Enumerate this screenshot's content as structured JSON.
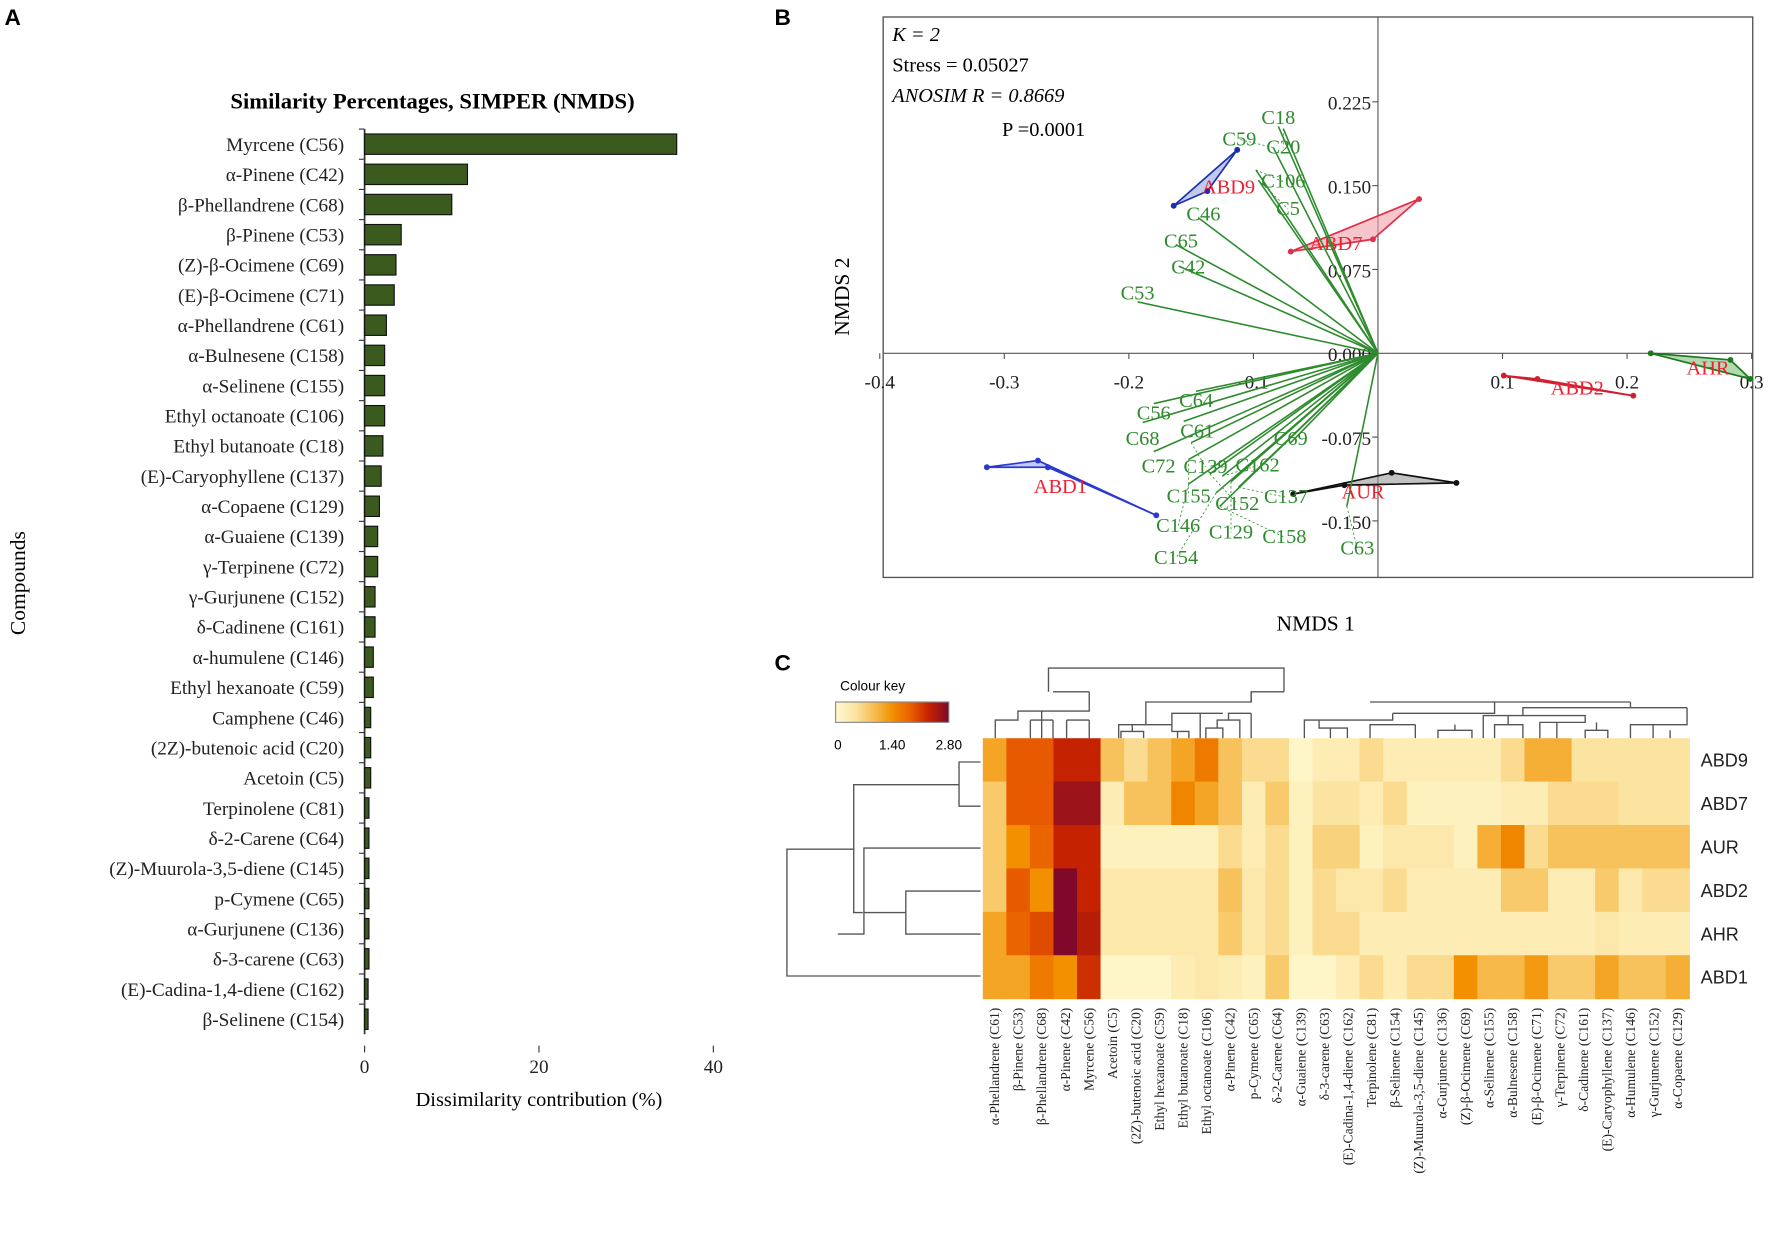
{
  "panel_letters": {
    "a": "A",
    "b": "B",
    "c": "C"
  },
  "chart_data": [
    {
      "type": "bar",
      "orientation": "horizontal",
      "title": "Similarity Percentages, SIMPER (NMDS)",
      "xlabel": "Dissimilarity contribution (%)",
      "ylabel": "Compounds",
      "xlim": [
        0,
        40
      ],
      "xticks": [
        "0",
        "20",
        "40"
      ],
      "bar_color": "#3a5a1e",
      "categories": [
        "Myrcene (C56)",
        "α-Pinene (C42)",
        "β-Phellandrene (C68)",
        "β-Pinene (C53)",
        "(Z)-β-Ocimene (C69)",
        "(E)-β-Ocimene (C71)",
        "α-Phellandrene (C61)",
        "α-Bulnesene (C158)",
        "α-Selinene (C155)",
        "Ethyl octanoate (C106)",
        "Ethyl butanoate (C18)",
        "(E)-Caryophyllene (C137)",
        "α-Copaene (C129)",
        "α-Guaiene (C139)",
        "γ-Terpinene (C72)",
        "γ-Gurjunene (C152)",
        "δ-Cadinene (C161)",
        "α-humulene (C146)",
        "Ethyl hexanoate (C59)",
        "Camphene (C46)",
        "(2Z)-butenoic acid (C20)",
        "Acetoin (C5)",
        "Terpinolene (C81)",
        "δ-2-Carene (C64)",
        "(Z)-Muurola-3,5-diene (C145)",
        "p-Cymene (C65)",
        "α-Gurjunene (C136)",
        "δ-3-carene (C63)",
        "(E)-Cadina-1,4-diene (C162)",
        "β-Selinene (C154)"
      ],
      "values": [
        35.8,
        11.8,
        10.0,
        4.2,
        3.6,
        3.4,
        2.5,
        2.3,
        2.3,
        2.3,
        2.1,
        1.9,
        1.7,
        1.5,
        1.5,
        1.2,
        1.2,
        1.0,
        1.0,
        0.7,
        0.7,
        0.7,
        0.5,
        0.5,
        0.5,
        0.5,
        0.5,
        0.5,
        0.4,
        0.4
      ]
    },
    {
      "type": "scatter",
      "subtype": "NMDS biplot",
      "xlabel": "NMDS 1",
      "ylabel": "NMDS 2",
      "xlim": [
        -0.4,
        0.3
      ],
      "ylim": [
        -0.2,
        0.3
      ],
      "xticks": [
        "-0.4",
        "-0.3",
        "-0.2",
        "-0.1",
        "0.1",
        "0.2",
        "0.3"
      ],
      "xtick_values": [
        -0.4,
        -0.3,
        -0.2,
        -0.1,
        0.1,
        0.2,
        0.3
      ],
      "yticks": [
        "0.225",
        "0.150",
        "0.075",
        "0.000",
        "-0.075",
        "-0.150"
      ],
      "ytick_values": [
        0.225,
        0.15,
        0.075,
        0,
        -0.075,
        -0.15
      ],
      "annotations": {
        "k": "K = 2",
        "stress": "Stress = 0.05027",
        "anosim": "ANOSIM  R = 0.8669",
        "p": "P =0.0001"
      },
      "vector_color": "#2e8b2e",
      "label_color": "#2e8b2e",
      "group_label_color": "#ee2233",
      "vectors": [
        {
          "label": "C18",
          "x": -0.08,
          "y": 0.203
        },
        {
          "label": "C20",
          "x": -0.076,
          "y": 0.201
        },
        {
          "label": "C59",
          "x": -0.084,
          "y": 0.184
        },
        {
          "label": "C106",
          "x": -0.098,
          "y": 0.164
        },
        {
          "label": "C5",
          "x": -0.096,
          "y": 0.155
        },
        {
          "label": "C46",
          "x": -0.144,
          "y": 0.121
        },
        {
          "label": "C65",
          "x": -0.162,
          "y": 0.097
        },
        {
          "label": "C42",
          "x": -0.16,
          "y": 0.078
        },
        {
          "label": "C53",
          "x": -0.193,
          "y": 0.046
        },
        {
          "label": "C64",
          "x": -0.146,
          "y": -0.034
        },
        {
          "label": "C56",
          "x": -0.18,
          "y": -0.045
        },
        {
          "label": "C68",
          "x": -0.189,
          "y": -0.062
        },
        {
          "label": "C61",
          "x": -0.156,
          "y": -0.061
        },
        {
          "label": "C72",
          "x": -0.18,
          "y": -0.088
        },
        {
          "label": "C139",
          "x": -0.15,
          "y": -0.08
        },
        {
          "label": "C155",
          "x": -0.152,
          "y": -0.095
        },
        {
          "label": "C152",
          "x": -0.135,
          "y": -0.108
        },
        {
          "label": "C162",
          "x": -0.125,
          "y": -0.11
        },
        {
          "label": "C129",
          "x": -0.118,
          "y": -0.115
        },
        {
          "label": "C137",
          "x": -0.112,
          "y": -0.12
        },
        {
          "label": "C146",
          "x": -0.152,
          "y": -0.117
        },
        {
          "label": "C154",
          "x": -0.13,
          "y": -0.125
        },
        {
          "label": "C158",
          "x": -0.127,
          "y": -0.137
        },
        {
          "label": "C69",
          "x": -0.07,
          "y": -0.08
        },
        {
          "label": "C63",
          "x": -0.025,
          "y": -0.137
        }
      ],
      "groups": [
        {
          "label": "ABD9",
          "color": "#1a2fb0",
          "fill": "#9aa6e0",
          "points": [
            [
              -0.164,
              0.132
            ],
            [
              -0.113,
              0.182
            ],
            [
              -0.137,
              0.145
            ]
          ],
          "label_at": [
            -0.12,
            0.15
          ]
        },
        {
          "label": "ABD7",
          "color": "#e0304a",
          "fill": "#f0a0aa",
          "points": [
            [
              -0.07,
              0.091
            ],
            [
              0.033,
              0.138
            ],
            [
              -0.004,
              0.102
            ]
          ],
          "label_at": [
            -0.03,
            0.095
          ]
        },
        {
          "label": "ABD1",
          "color": "#2a3ad0",
          "fill": "#a0a8e8",
          "points": [
            [
              -0.314,
              -0.102
            ],
            [
              -0.273,
              -0.096
            ],
            [
              -0.178,
              -0.145
            ],
            [
              -0.265,
              -0.102
            ]
          ],
          "label_at": [
            -0.255,
            -0.118
          ]
        },
        {
          "label": "AUR",
          "color": "#111111",
          "fill": "#999999",
          "points": [
            [
              -0.068,
              -0.126
            ],
            [
              0.011,
              -0.107
            ],
            [
              0.063,
              -0.116
            ],
            [
              -0.027,
              -0.118
            ]
          ],
          "label_at": [
            -0.012,
            -0.123
          ]
        },
        {
          "label": "ABD2",
          "color": "#d02030",
          "fill": "#e08080",
          "points": [
            [
              0.101,
              -0.02
            ],
            [
              0.128,
              -0.023
            ],
            [
              0.205,
              -0.038
            ]
          ],
          "label_at": [
            0.16,
            -0.03
          ]
        },
        {
          "label": "AHR",
          "color": "#1f7a1f",
          "fill": "#80c080",
          "points": [
            [
              0.219,
              0.0
            ],
            [
              0.283,
              -0.006
            ],
            [
              0.299,
              -0.023
            ]
          ],
          "label_at": [
            0.265,
            -0.012
          ]
        }
      ]
    },
    {
      "type": "heatmap",
      "colour_key_title": "Colour key",
      "colour_key_ticks": [
        "0",
        "1.40",
        "2.80"
      ],
      "range": [
        0,
        2.8
      ],
      "colour_stops": [
        [
          0,
          "#fffad2"
        ],
        [
          0.5,
          "#fbe3a0"
        ],
        [
          1.0,
          "#f6b94a"
        ],
        [
          1.4,
          "#f29000"
        ],
        [
          1.9,
          "#e85a00"
        ],
        [
          2.3,
          "#c42200"
        ],
        [
          2.8,
          "#80082a"
        ]
      ],
      "rows": [
        "ABD9",
        "ABD7",
        "AUR",
        "ABD2",
        "AHR",
        "ABD1"
      ],
      "columns": [
        "α-Phellandrene (C61)",
        "β-Pinene (C53)",
        "β-Phellandrene (C68)",
        "α-Pinene (C42)",
        "Myrcene (C56)",
        "Acetoin (C5)",
        "(2Z)-butenoic acid (C20)",
        "Ethyl hexanoate (C59)",
        "Ethyl butanoate (C18)",
        "Ethyl octanoate (C106)",
        "α-Pinene (C42)",
        "p-Cymene (C65)",
        "δ-2-Carene (C64)",
        "α-Guaiene (C139)",
        "δ-3-carene (C63)",
        "(E)-Cadina-1,4-diene (C162)",
        "Terpinolene (C81)",
        "β-Selinene (C154)",
        "(Z)-Muurola-3,5-diene (C145)",
        "α-Gurjunene (C136)",
        "(Z)-β-Ocimene (C69)",
        "α-Selinene (C155)",
        "α-Bulnesene (C158)",
        "(E)-β-Ocimene (C71)",
        "γ-Terpinene (C72)",
        "δ-Cadinene (C161)",
        "(E)-Caryophyllene (C137)",
        "α-Humulene (C146)",
        "γ-Gurjunene (C152)",
        "α-Copaene (C129)"
      ],
      "values": [
        [
          1.2,
          1.9,
          1.9,
          2.3,
          2.3,
          0.9,
          0.6,
          0.9,
          1.2,
          1.6,
          0.9,
          0.6,
          0.6,
          0.1,
          0.3,
          0.3,
          0.6,
          0.3,
          0.3,
          0.3,
          0.3,
          0.3,
          0.6,
          1.1,
          1.1,
          0.5,
          0.5,
          0.5,
          0.5,
          0.5
        ],
        [
          0.8,
          1.9,
          1.9,
          2.6,
          2.6,
          0.3,
          0.9,
          0.9,
          1.5,
          1.2,
          0.9,
          0.3,
          0.8,
          0.2,
          0.5,
          0.5,
          0.3,
          0.6,
          0.2,
          0.2,
          0.2,
          0.2,
          0.3,
          0.3,
          0.6,
          0.6,
          0.6,
          0.5,
          0.5,
          0.5
        ],
        [
          0.8,
          1.4,
          1.8,
          2.3,
          2.3,
          0.2,
          0.2,
          0.2,
          0.2,
          0.2,
          0.6,
          0.3,
          0.6,
          0.2,
          0.7,
          0.7,
          0.2,
          0.4,
          0.4,
          0.4,
          0.2,
          1.1,
          1.5,
          0.6,
          0.9,
          0.9,
          0.9,
          0.9,
          0.9,
          0.9
        ],
        [
          0.8,
          1.9,
          1.4,
          2.8,
          2.3,
          0.4,
          0.4,
          0.4,
          0.4,
          0.4,
          0.9,
          0.4,
          0.6,
          0.2,
          0.6,
          0.4,
          0.4,
          0.6,
          0.3,
          0.3,
          0.3,
          0.3,
          0.8,
          0.8,
          0.3,
          0.3,
          0.8,
          0.4,
          0.6,
          0.6
        ],
        [
          1.2,
          1.8,
          2.0,
          2.8,
          2.4,
          0.4,
          0.4,
          0.4,
          0.4,
          0.4,
          0.8,
          0.4,
          0.6,
          0.2,
          0.6,
          0.6,
          0.3,
          0.3,
          0.3,
          0.3,
          0.3,
          0.3,
          0.3,
          0.3,
          0.3,
          0.3,
          0.4,
          0.3,
          0.3,
          0.3
        ],
        [
          1.2,
          1.2,
          1.6,
          1.4,
          2.2,
          0.1,
          0.1,
          0.1,
          0.3,
          0.4,
          0.3,
          0.2,
          0.8,
          0.1,
          0.1,
          0.3,
          0.6,
          0.3,
          0.6,
          0.6,
          1.4,
          1.0,
          1.0,
          1.3,
          0.8,
          0.8,
          1.2,
          0.9,
          0.9,
          1.1
        ]
      ]
    }
  ]
}
